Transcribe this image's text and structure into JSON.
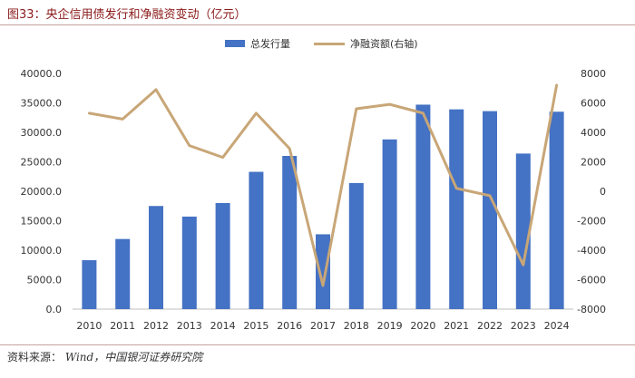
{
  "header": {
    "title": "图33：央企信用债发行和净融资变动（亿元）"
  },
  "footer": {
    "source_label": "资料来源：",
    "source_value": "Wind，中国银河证券研究院"
  },
  "colors": {
    "bar": "#4472C4",
    "line": "#C8A677",
    "title": "#8B1A1A",
    "axis_text": "#333333"
  },
  "chart_data": {
    "type": "bar",
    "categories": [
      "2010",
      "2011",
      "2012",
      "2013",
      "2014",
      "2015",
      "2016",
      "2017",
      "2018",
      "2019",
      "2020",
      "2021",
      "2022",
      "2023",
      "2024"
    ],
    "series": [
      {
        "name": "总发行量",
        "type": "bar",
        "axis": "left",
        "values": [
          8300,
          11900,
          17500,
          15700,
          18000,
          23300,
          26000,
          12700,
          21400,
          28800,
          34700,
          33900,
          33600,
          26400,
          33500
        ]
      },
      {
        "name": "净融资额(右轴)",
        "type": "line",
        "axis": "right",
        "values": [
          5300,
          4900,
          6900,
          3100,
          2300,
          5300,
          2900,
          -6400,
          5600,
          5900,
          5300,
          200,
          -300,
          -5000,
          7200
        ]
      }
    ],
    "y_left": {
      "ylim": [
        0,
        40000
      ],
      "ticks": [
        "0.0",
        "5000.0",
        "10000.0",
        "15000.0",
        "20000.0",
        "25000.0",
        "30000.0",
        "35000.0",
        "40000.0"
      ]
    },
    "y_right": {
      "ylim": [
        -8000,
        8000
      ],
      "ticks": [
        "-8000",
        "-6000",
        "-4000",
        "-2000",
        "0",
        "2000",
        "4000",
        "6000",
        "8000"
      ]
    },
    "grid": false,
    "legend_position": "top-center"
  }
}
